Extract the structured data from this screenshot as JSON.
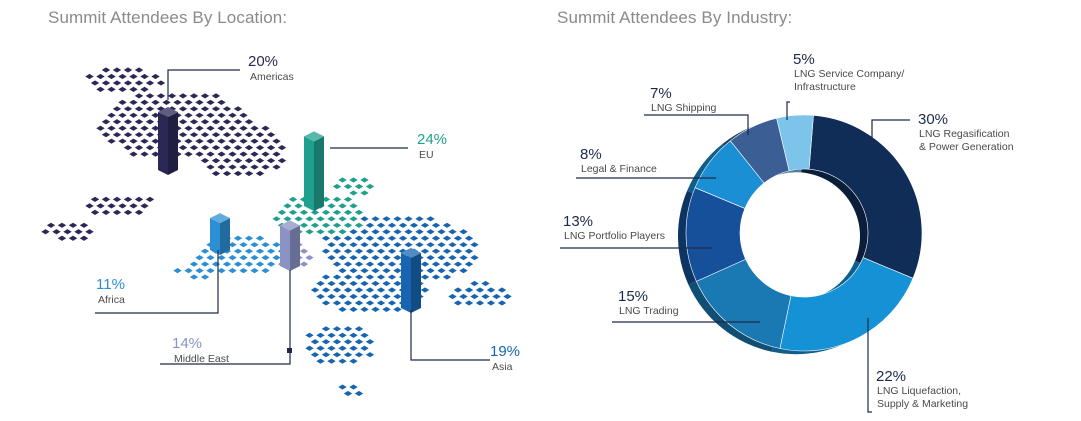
{
  "titles": {
    "location": "Summit Attendees By Location:",
    "industry": "Summit Attendees By Industry:"
  },
  "colors": {
    "americas": "#2b2856",
    "eu": "#1fa08f",
    "africa": "#2c8fd4",
    "middle_east": "#8b93c4",
    "asia": "#1765b0",
    "leader_line": "#1c2a4a"
  },
  "chart_data": [
    {
      "type": "bar",
      "title": "Summit Attendees By Location:",
      "categories": [
        "Americas",
        "EU",
        "Africa",
        "Middle East",
        "Asia"
      ],
      "values": [
        20,
        24,
        11,
        14,
        19
      ],
      "unit": "%",
      "labels": [
        {
          "pct": "20%",
          "name": "Americas"
        },
        {
          "pct": "24%",
          "name": "EU"
        },
        {
          "pct": "11%",
          "name": "Africa"
        },
        {
          "pct": "14%",
          "name": "Middle East"
        },
        {
          "pct": "19%",
          "name": "Asia"
        }
      ]
    },
    {
      "type": "pie",
      "title": "Summit Attendees By Industry:",
      "slices": [
        {
          "pct": "30%",
          "value": 30,
          "lines": [
            "LNG Regasification",
            "& Power Generation"
          ],
          "color": "#0f2d57"
        },
        {
          "pct": "22%",
          "value": 22,
          "lines": [
            "LNG Liquefaction,",
            "Supply & Marketing"
          ],
          "color": "#1592d6"
        },
        {
          "pct": "15%",
          "value": 15,
          "lines": [
            "LNG Trading"
          ],
          "color": "#1a78b3"
        },
        {
          "pct": "13%",
          "value": 13,
          "lines": [
            "LNG Portfolio Players"
          ],
          "color": "#16509a"
        },
        {
          "pct": "8%",
          "value": 8,
          "lines": [
            "Legal & Finance"
          ],
          "color": "#1a8fd4"
        },
        {
          "pct": "7%",
          "value": 7,
          "lines": [
            "LNG Shipping"
          ],
          "color": "#3b5f95"
        },
        {
          "pct": "5%",
          "value": 5,
          "lines": [
            "LNG Service Company/",
            "Infrastructure"
          ],
          "color": "#7cc4ea"
        }
      ]
    }
  ]
}
